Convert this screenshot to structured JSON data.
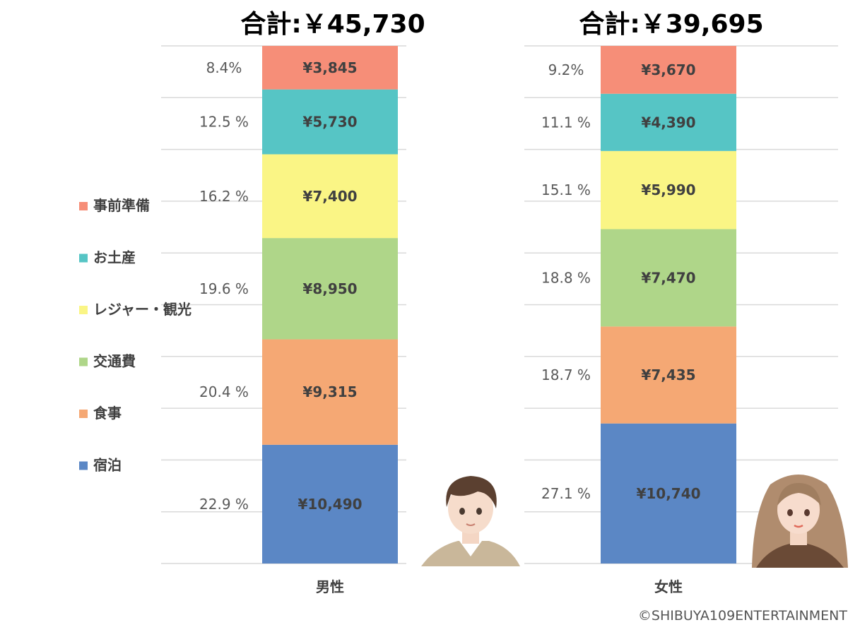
{
  "chart_data": {
    "type": "bar",
    "stacked": true,
    "categories": [
      "男性",
      "女性"
    ],
    "totals_label": [
      "合計:￥45,730",
      "合計:￥39,695"
    ],
    "series": [
      {
        "name": "宿泊",
        "color": "#5b87c5",
        "values": [
          10490,
          10740
        ],
        "value_labels": [
          "¥10,490",
          "¥10,740"
        ],
        "percent_labels": [
          "22.9 %",
          "27.1 %"
        ]
      },
      {
        "name": "食事",
        "color": "#f5a874",
        "values": [
          9315,
          7435
        ],
        "value_labels": [
          "¥9,315",
          "¥7,435"
        ],
        "percent_labels": [
          "20.4 %",
          "18.7 %"
        ]
      },
      {
        "name": "交通費",
        "color": "#afd689",
        "values": [
          8950,
          7470
        ],
        "value_labels": [
          "¥8,950",
          "¥7,470"
        ],
        "percent_labels": [
          "19.6 %",
          "18.8 %"
        ]
      },
      {
        "name": "レジャー・観光",
        "color": "#faf585",
        "values": [
          7400,
          5990
        ],
        "value_labels": [
          "¥7,400",
          "¥5,990"
        ],
        "percent_labels": [
          "16.2 %",
          "15.1 %"
        ]
      },
      {
        "name": "お土産",
        "color": "#56c5c5",
        "values": [
          5730,
          4390
        ],
        "value_labels": [
          "¥5,730",
          "¥4,390"
        ],
        "percent_labels": [
          "12.5 %",
          "11.1 %"
        ]
      },
      {
        "name": "事前準備",
        "color": "#f68e78",
        "values": [
          3845,
          3670
        ],
        "value_labels": [
          "¥3,845",
          "¥3,670"
        ],
        "percent_labels": [
          "8.4%",
          "9.2%"
        ]
      }
    ],
    "legend_order": [
      "事前準備",
      "お土産",
      "レジャー・観光",
      "交通費",
      "食事",
      "宿泊"
    ],
    "legend_position": "left",
    "grid": true,
    "ylim": [
      0,
      45730
    ]
  },
  "credit": "©SHIBUYA109ENTERTAINMENT"
}
